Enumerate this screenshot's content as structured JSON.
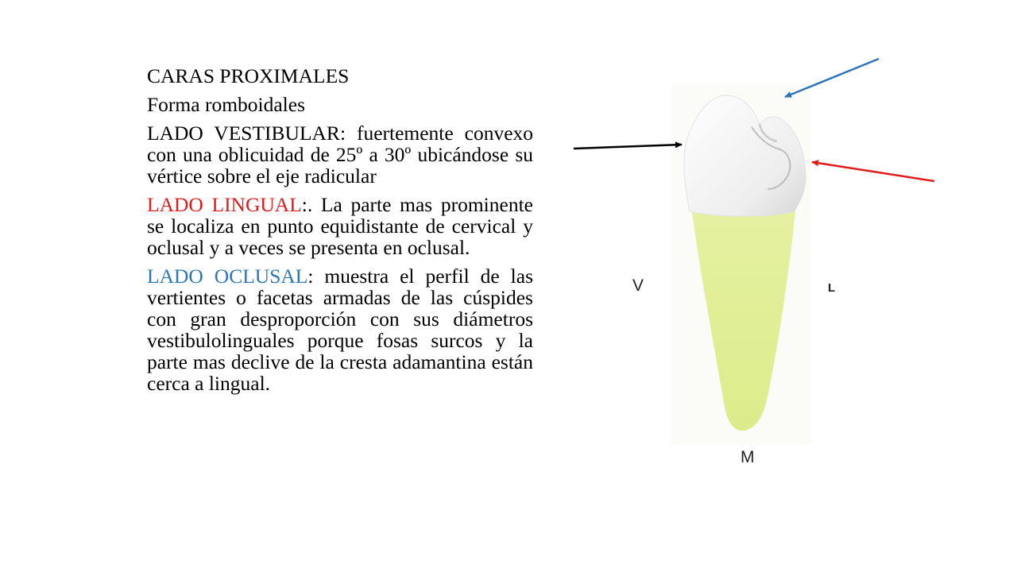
{
  "content": {
    "heading": "CARAS PROXIMALES",
    "subheading": "Forma romboidales",
    "vestibular": {
      "label": "LADO VESTIBULAR",
      "text": ": fuertemente convexo con una oblicuidad de 25º a 30º ubicándose su vértice sobre el eje radicular"
    },
    "lingual": {
      "label": "LADO LINGUAL",
      "text": ":. La parte mas prominente se localiza en punto equidistante de cervical y oclusal y a veces se presenta en oclusal."
    },
    "oclusal": {
      "label": "LADO OCLUSAL",
      "text": ": muestra el perfil de las vertientes o facetas armadas de las cúspides con gran desproporción con sus diámetros vestibulolinguales porque fosas surcos y la parte mas declive de la cresta adamantina están cerca a lingual."
    }
  },
  "figure": {
    "label_v": "V",
    "label_l": "L",
    "label_m": "M",
    "colors": {
      "enamel": "#f2f2f2",
      "root": "#e4f09a",
      "arrow_black": "#000000",
      "arrow_red": "#e01b1b",
      "arrow_blue": "#2e75b6"
    }
  }
}
